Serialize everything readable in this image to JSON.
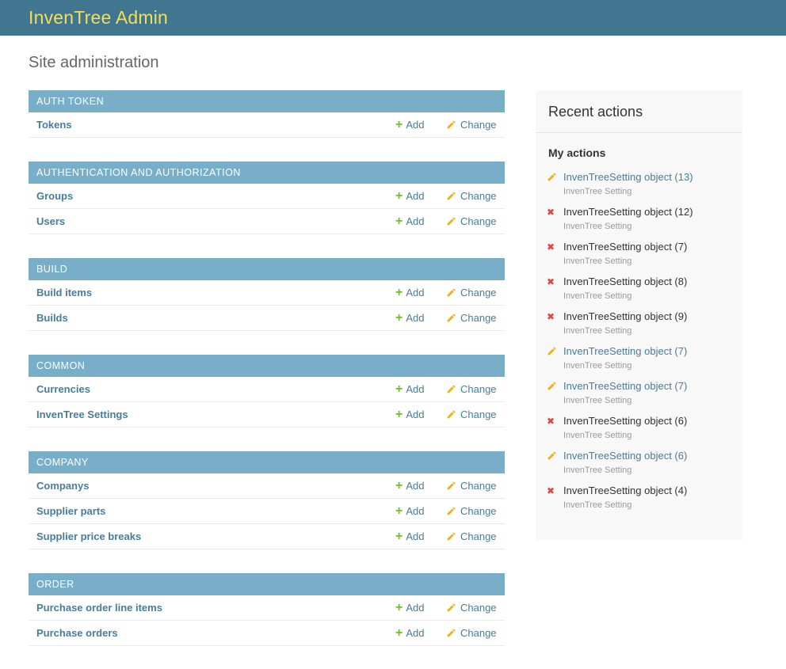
{
  "header": {
    "title": "InvenTree Admin"
  },
  "page": {
    "title": "Site administration"
  },
  "actions": {
    "add_label": "Add",
    "change_label": "Change"
  },
  "main": {
    "sections": [
      {
        "title": "AUTH TOKEN",
        "rows": [
          {
            "label": "Tokens"
          }
        ]
      },
      {
        "title": "AUTHENTICATION AND AUTHORIZATION",
        "rows": [
          {
            "label": "Groups"
          },
          {
            "label": "Users"
          }
        ]
      },
      {
        "title": "BUILD",
        "rows": [
          {
            "label": "Build items"
          },
          {
            "label": "Builds"
          }
        ]
      },
      {
        "title": "COMMON",
        "rows": [
          {
            "label": "Currencies"
          },
          {
            "label": "InvenTree Settings"
          }
        ]
      },
      {
        "title": "COMPANY",
        "rows": [
          {
            "label": "Companys"
          },
          {
            "label": "Supplier parts"
          },
          {
            "label": "Supplier price breaks"
          }
        ]
      },
      {
        "title": "ORDER",
        "rows": [
          {
            "label": "Purchase order line items"
          },
          {
            "label": "Purchase orders"
          }
        ]
      }
    ]
  },
  "sidebar": {
    "title": "Recent actions",
    "subtitle": "My actions",
    "items": [
      {
        "type": "changed",
        "label": "InvenTreeSetting object (13)",
        "sub": "InvenTree Setting"
      },
      {
        "type": "deleted",
        "label": "InvenTreeSetting object (12)",
        "sub": "InvenTree Setting"
      },
      {
        "type": "deleted",
        "label": "InvenTreeSetting object (7)",
        "sub": "InvenTree Setting"
      },
      {
        "type": "deleted",
        "label": "InvenTreeSetting object (8)",
        "sub": "InvenTree Setting"
      },
      {
        "type": "deleted",
        "label": "InvenTreeSetting object (9)",
        "sub": "InvenTree Setting"
      },
      {
        "type": "changed",
        "label": "InvenTreeSetting object (7)",
        "sub": "InvenTree Setting"
      },
      {
        "type": "changed",
        "label": "InvenTreeSetting object (7)",
        "sub": "InvenTree Setting"
      },
      {
        "type": "deleted",
        "label": "InvenTreeSetting object (6)",
        "sub": "InvenTree Setting"
      },
      {
        "type": "changed",
        "label": "InvenTreeSetting object (6)",
        "sub": "InvenTree Setting"
      },
      {
        "type": "deleted",
        "label": "InvenTreeSetting object (4)",
        "sub": "InvenTree Setting"
      }
    ]
  },
  "colors": {
    "header_bg": "#417690",
    "brand_text": "#f5dd5d",
    "caption_bg": "#79aec8",
    "link": "#447e9b",
    "add_green": "#70bf2b",
    "change_yellow": "#efb113",
    "delete_red": "#dd4646",
    "sidebar_bg": "#f8f8f8"
  }
}
